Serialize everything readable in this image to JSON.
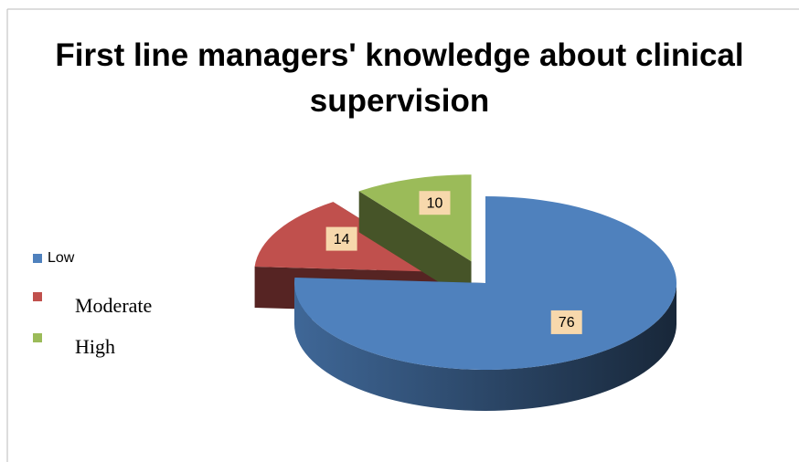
{
  "chart_data": {
    "type": "pie",
    "title": "First line managers' knowledge about clinical supervision",
    "categories": [
      "Low",
      "Moderate",
      "High"
    ],
    "values": [
      76,
      14,
      10
    ],
    "colors": [
      "#4f81bd",
      "#c0504d",
      "#9bbb59"
    ],
    "legend": "left"
  }
}
